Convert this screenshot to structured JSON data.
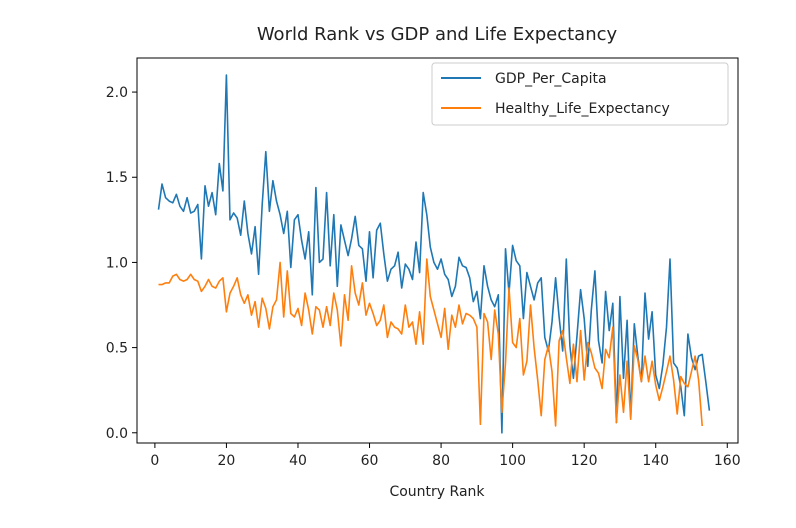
{
  "chart_data": {
    "type": "line",
    "title": "World Rank vs GDP and Life Expectancy",
    "xlabel": "Country Rank",
    "ylabel": "",
    "xlim": [
      -5,
      163
    ],
    "ylim": [
      -0.06,
      2.2
    ],
    "xticks": [
      0,
      20,
      40,
      60,
      80,
      100,
      120,
      140,
      160
    ],
    "yticks": [
      0.0,
      0.5,
      1.0,
      1.5,
      2.0
    ],
    "xtick_labels": [
      "0",
      "20",
      "40",
      "60",
      "80",
      "100",
      "120",
      "140",
      "160"
    ],
    "ytick_labels": [
      "0.0",
      "0.5",
      "1.0",
      "1.5",
      "2.0"
    ],
    "grid": false,
    "legend_position": "top-right",
    "x_start": 1,
    "series": [
      {
        "name": "GDP_Per_Capita",
        "color": "#1f77b4",
        "values": [
          1.31,
          1.46,
          1.38,
          1.36,
          1.35,
          1.4,
          1.33,
          1.3,
          1.38,
          1.29,
          1.3,
          1.34,
          1.02,
          1.45,
          1.33,
          1.41,
          1.28,
          1.58,
          1.42,
          2.1,
          1.25,
          1.29,
          1.26,
          1.16,
          1.36,
          1.17,
          1.05,
          1.21,
          0.93,
          1.34,
          1.65,
          1.3,
          1.48,
          1.36,
          1.28,
          1.17,
          1.3,
          0.97,
          1.25,
          1.28,
          1.13,
          1.02,
          1.18,
          0.81,
          1.44,
          1.0,
          1.02,
          1.41,
          0.98,
          1.28,
          0.86,
          1.22,
          1.13,
          1.04,
          1.14,
          1.27,
          1.1,
          1.08,
          0.89,
          1.18,
          0.91,
          1.19,
          1.23,
          1.05,
          0.89,
          0.96,
          0.98,
          1.06,
          0.85,
          0.99,
          0.96,
          0.9,
          1.12,
          0.94,
          1.41,
          1.28,
          1.09,
          1.0,
          0.96,
          1.02,
          0.93,
          0.9,
          0.8,
          0.86,
          1.03,
          0.98,
          0.97,
          0.91,
          0.77,
          0.83,
          0.67,
          0.98,
          0.86,
          0.78,
          0.74,
          0.81,
          0.0,
          1.08,
          0.82,
          1.1,
          1.01,
          0.98,
          0.67,
          0.94,
          0.86,
          0.78,
          0.88,
          0.91,
          0.56,
          0.48,
          0.65,
          0.91,
          0.68,
          0.48,
          1.02,
          0.51,
          0.32,
          0.57,
          0.84,
          0.67,
          0.39,
          0.72,
          0.95,
          0.54,
          0.41,
          0.83,
          0.6,
          0.76,
          0.06,
          0.8,
          0.32,
          0.66,
          0.09,
          0.64,
          0.45,
          0.3,
          0.82,
          0.55,
          0.71,
          0.34,
          0.26,
          0.4,
          0.62,
          1.02,
          0.41,
          0.38,
          0.27,
          0.1,
          0.58,
          0.44,
          0.37,
          0.45,
          0.46,
          0.3,
          0.13
        ]
      },
      {
        "name": "Healthy_Life_Expectancy",
        "color": "#ff7f0e",
        "values": [
          0.87,
          0.87,
          0.88,
          0.88,
          0.92,
          0.93,
          0.9,
          0.89,
          0.9,
          0.93,
          0.9,
          0.89,
          0.83,
          0.86,
          0.9,
          0.86,
          0.85,
          0.89,
          0.91,
          0.71,
          0.82,
          0.86,
          0.91,
          0.81,
          0.76,
          0.81,
          0.69,
          0.77,
          0.62,
          0.79,
          0.73,
          0.61,
          0.74,
          0.78,
          1.0,
          0.68,
          0.95,
          0.7,
          0.68,
          0.73,
          0.63,
          0.82,
          0.72,
          0.58,
          0.74,
          0.72,
          0.62,
          0.74,
          0.63,
          0.82,
          0.72,
          0.51,
          0.81,
          0.66,
          0.98,
          0.82,
          0.75,
          0.88,
          0.69,
          0.76,
          0.7,
          0.63,
          0.66,
          0.75,
          0.56,
          0.65,
          0.62,
          0.61,
          0.58,
          0.75,
          0.62,
          0.65,
          0.52,
          0.71,
          0.52,
          1.02,
          0.8,
          0.72,
          0.64,
          0.56,
          0.73,
          0.49,
          0.69,
          0.62,
          0.75,
          0.64,
          0.7,
          0.69,
          0.67,
          0.62,
          0.05,
          0.7,
          0.65,
          0.43,
          0.72,
          0.58,
          0.12,
          0.41,
          0.85,
          0.53,
          0.5,
          0.67,
          0.34,
          0.42,
          0.75,
          0.5,
          0.31,
          0.1,
          0.43,
          0.51,
          0.36,
          0.04,
          0.54,
          0.6,
          0.44,
          0.29,
          0.52,
          0.3,
          0.6,
          0.31,
          0.53,
          0.47,
          0.38,
          0.35,
          0.26,
          0.49,
          0.44,
          0.62,
          0.06,
          0.34,
          0.12,
          0.42,
          0.08,
          0.51,
          0.43,
          0.3,
          0.45,
          0.3,
          0.42,
          0.28,
          0.19,
          0.27,
          0.36,
          0.45,
          0.31,
          0.11,
          0.33,
          0.29,
          0.27,
          0.36,
          0.45,
          0.31,
          0.04
        ]
      }
    ]
  }
}
